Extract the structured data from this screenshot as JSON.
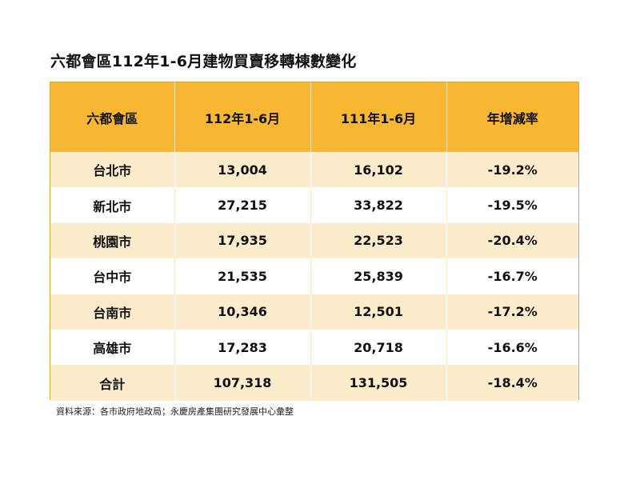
{
  "title": "六都會區112年1-6月建物買賣移轉棟數變化",
  "source": "資料來源：各市政府地政局；永慶房產集團研究發展中心彙整",
  "colors": {
    "header_bg": "#f7b733",
    "band_bg": "#fdeccc"
  },
  "chart_data": {
    "type": "table",
    "title": "六都會區112年1-6月建物買賣移轉棟數變化",
    "columns": [
      "六都會區",
      "112年1-6月",
      "111年1-6月",
      "年增減率"
    ],
    "rows": [
      {
        "region": "台北市",
        "y112": "13,004",
        "y111": "16,102",
        "change": "-19.2%"
      },
      {
        "region": "新北市",
        "y112": "27,215",
        "y111": "33,822",
        "change": "-19.5%"
      },
      {
        "region": "桃園市",
        "y112": "17,935",
        "y111": "22,523",
        "change": "-20.4%"
      },
      {
        "region": "台中市",
        "y112": "21,535",
        "y111": "25,839",
        "change": "-16.7%"
      },
      {
        "region": "台南市",
        "y112": "10,346",
        "y111": "12,501",
        "change": "-17.2%"
      },
      {
        "region": "高雄市",
        "y112": "17,283",
        "y111": "20,718",
        "change": "-16.6%"
      },
      {
        "region": "合計",
        "y112": "107,318",
        "y111": "131,505",
        "change": "-18.4%"
      }
    ]
  }
}
